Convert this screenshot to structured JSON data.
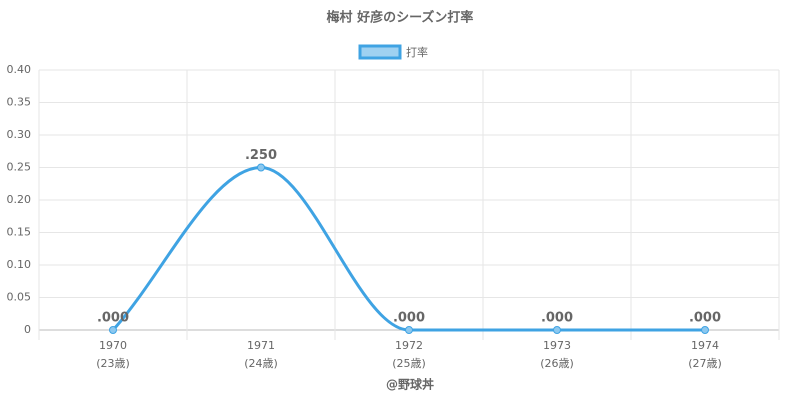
{
  "chart_data": {
    "type": "line",
    "title": "梅村 好彦のシーズン打率",
    "categories": [
      [
        "1970",
        "(23歳)"
      ],
      [
        "1971",
        "(24歳)"
      ],
      [
        "1972",
        "(25歳)"
      ],
      [
        "1973",
        "(26歳)"
      ],
      [
        "1974",
        "(27歳)"
      ]
    ],
    "series": [
      {
        "name": "打率",
        "color": "#3fa3e3",
        "values": [
          0,
          0.25,
          0,
          0,
          0
        ],
        "value_labels": [
          ".000",
          ".250",
          ".000",
          ".000",
          ".000"
        ]
      }
    ],
    "ylim": [
      0,
      0.4
    ],
    "yticks": [
      0,
      0.05,
      {
        "value": 0.1,
        "label": "0.10"
      },
      0.15,
      {
        "value": 0.2,
        "label": "0.20"
      },
      0.25,
      {
        "value": 0.3,
        "label": "0.30"
      },
      0.35,
      {
        "value": 0.4,
        "label": "0.40"
      }
    ],
    "grid": true,
    "legend": "top",
    "source": "@野球丼"
  }
}
